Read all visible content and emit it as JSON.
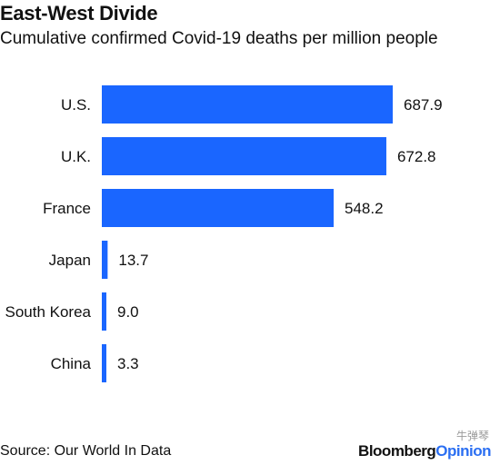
{
  "header": {
    "title": "East-West Divide",
    "subtitle": "Cumulative confirmed Covid-19 deaths per million people"
  },
  "footer": {
    "source": "Source: Our World In Data",
    "brand_main": "Bloomberg",
    "brand_accent": "Opinion",
    "watermark": "牛弹琴"
  },
  "colors": {
    "bar": "#1a66ff",
    "text": "#111111",
    "brand_accent": "#2b6ff2"
  },
  "chart_data": {
    "type": "bar",
    "orientation": "horizontal",
    "title": "East-West Divide",
    "subtitle": "Cumulative confirmed Covid-19 deaths per million people",
    "categories": [
      "U.S.",
      "U.K.",
      "France",
      "Japan",
      "South Korea",
      "China"
    ],
    "values": [
      687.9,
      672.8,
      548.2,
      13.7,
      9.0,
      3.3
    ],
    "value_labels": [
      "687.9",
      "672.8",
      "548.2",
      "13.7",
      "9.0",
      "3.3"
    ],
    "xlim": [
      0,
      687.9
    ],
    "grid": false,
    "legend": "none"
  }
}
